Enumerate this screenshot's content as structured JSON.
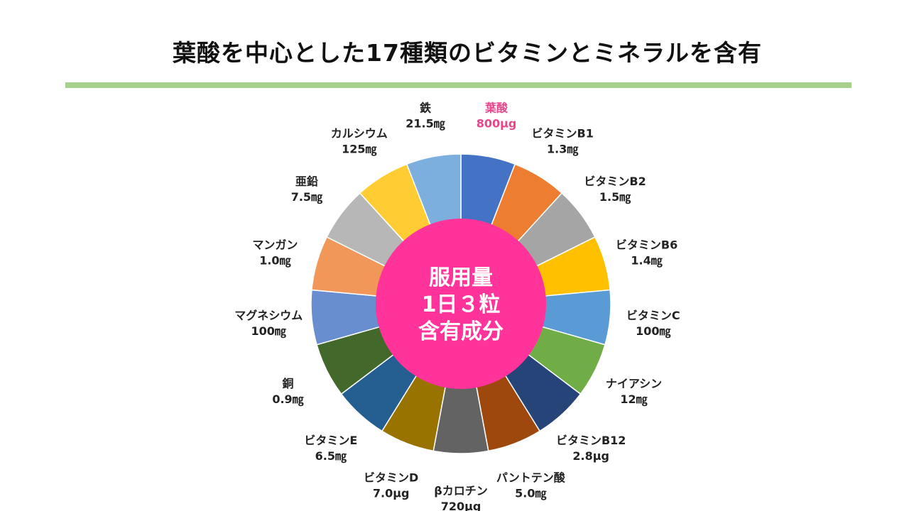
{
  "page": {
    "title": "葉酸を中心とした17種類のビタミンとミネラルを含有"
  },
  "chart_data": {
    "type": "pie",
    "center_text": [
      "服用量",
      "1日３粒",
      "含有成分"
    ],
    "center_color": "#ff3399",
    "rule_color": "#a9d18e",
    "highlight_color": "#e6468c",
    "slices": [
      {
        "name": "葉酸",
        "amount": "800μg",
        "value": 1,
        "color": "#4472c4",
        "highlight": true
      },
      {
        "name": "ビタミンB1",
        "amount": "1.3㎎",
        "value": 1,
        "color": "#ed7d31"
      },
      {
        "name": "ビタミンB2",
        "amount": "1.5㎎",
        "value": 1,
        "color": "#a5a5a5"
      },
      {
        "name": "ビタミンB6",
        "amount": "1.4㎎",
        "value": 1,
        "color": "#ffc000"
      },
      {
        "name": "ビタミンC",
        "amount": "100㎎",
        "value": 1,
        "color": "#5b9bd5"
      },
      {
        "name": "ナイアシン",
        "amount": "12㎎",
        "value": 1,
        "color": "#70ad47"
      },
      {
        "name": "ビタミンB12",
        "amount": "2.8μg",
        "value": 1,
        "color": "#264478"
      },
      {
        "name": "パントテン酸",
        "amount": "5.0㎎",
        "value": 1,
        "color": "#9e480e"
      },
      {
        "name": "βカロチン",
        "amount": "720μg",
        "value": 1,
        "color": "#636363"
      },
      {
        "name": "ビタミンD",
        "amount": "7.0μg",
        "value": 1,
        "color": "#997300"
      },
      {
        "name": "ビタミンE",
        "amount": "6.5㎎",
        "value": 1,
        "color": "#255e91"
      },
      {
        "name": "銅",
        "amount": "0.9㎎",
        "value": 1,
        "color": "#43682b"
      },
      {
        "name": "マグネシウム",
        "amount": "100㎎",
        "value": 1,
        "color": "#698ed0"
      },
      {
        "name": "マンガン",
        "amount": "1.0㎎",
        "value": 1,
        "color": "#f1975a"
      },
      {
        "name": "亜鉛",
        "amount": "7.5㎎",
        "value": 1,
        "color": "#b7b7b7"
      },
      {
        "name": "カルシウム",
        "amount": "125㎎",
        "value": 1,
        "color": "#ffcd33"
      },
      {
        "name": "鉄",
        "amount": "21.5㎎",
        "value": 1,
        "color": "#7cafdd"
      }
    ]
  }
}
